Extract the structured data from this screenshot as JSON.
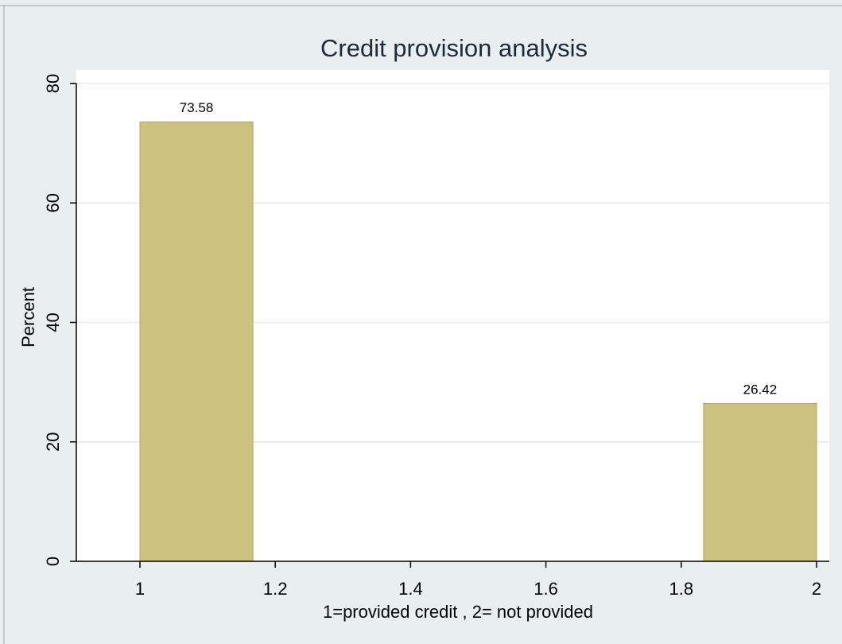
{
  "chart_data": {
    "type": "bar",
    "title": "Credit provision analysis",
    "xlabel": "1=provided credit , 2= not provided",
    "ylabel": "Percent",
    "xlim": [
      1,
      2
    ],
    "ylim": [
      0,
      80
    ],
    "x_ticks": [
      "1",
      "1.2",
      "1.4",
      "1.6",
      "1.8",
      "2"
    ],
    "y_ticks": [
      "0",
      "20",
      "40",
      "60",
      "80"
    ],
    "bars": [
      {
        "x_start": 1.0,
        "x_end": 1.167,
        "value": 73.58,
        "label": "73.58"
      },
      {
        "x_start": 1.833,
        "x_end": 2.0,
        "value": 26.42,
        "label": "26.42"
      }
    ],
    "grid": true,
    "colors": {
      "page_background": "#e9eff1",
      "plot_background": "#ffffff",
      "bar_fill": "#cdc180",
      "bar_stroke": "#b5a95e",
      "grid": "#e3eaed",
      "title": "#1e2b37",
      "frame_border": "#9aa4aa"
    }
  }
}
